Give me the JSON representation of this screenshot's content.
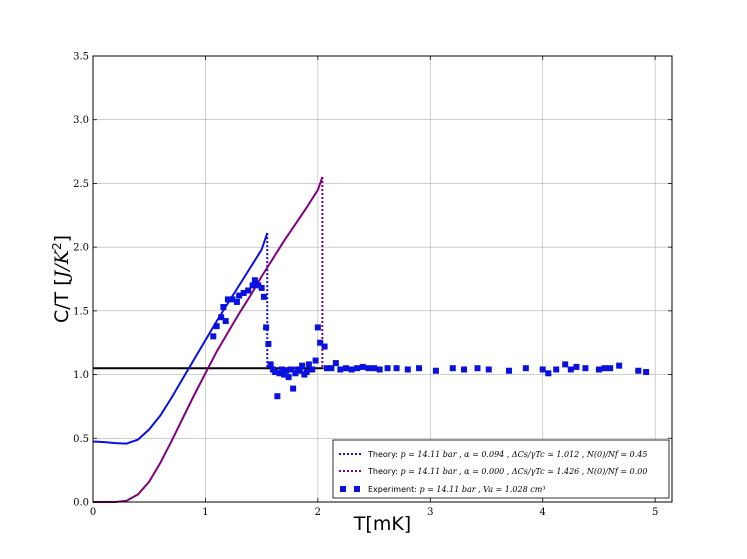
{
  "chart_data": {
    "type": "line",
    "xlabel": "T[mK]",
    "ylabel": "C/T [J/K²]",
    "ylabel_parts": {
      "main": "C/T ",
      "bracket_open": "[",
      "unit": "J/K",
      "sup": "2",
      "bracket_close": "]"
    },
    "xlim": [
      0,
      5.15
    ],
    "ylim": [
      0,
      3.5
    ],
    "xticks": [
      0,
      1,
      2,
      3,
      4,
      5
    ],
    "xtick_labels": [
      "0",
      "1",
      "2",
      "3",
      "4",
      "5"
    ],
    "yticks": [
      0.0,
      0.5,
      1.0,
      1.5,
      2.0,
      2.5,
      3.0,
      3.5
    ],
    "ytick_labels": [
      "0.0",
      "0.5",
      "1.0",
      "1.5",
      "2.0",
      "2.5",
      "3.0",
      "3.5"
    ],
    "grid": true,
    "legend_position": "bottom-right",
    "reference_line": {
      "y": 1.05,
      "x": [
        0,
        2.05
      ],
      "color": "#000000"
    },
    "series": [
      {
        "name": "Theory: p = 14.11 bar , α = 0.094 , ΔC_s/γT_c ≃ 1.012 , N(0)/N_f = 0.45",
        "style": "line",
        "color": "#0a10e0",
        "x": [
          0.0,
          0.1,
          0.2,
          0.3,
          0.4,
          0.5,
          0.6,
          0.7,
          0.8,
          0.9,
          1.0,
          1.1,
          1.2,
          1.3,
          1.4,
          1.5,
          1.55
        ],
        "y": [
          0.475,
          0.47,
          0.462,
          0.458,
          0.49,
          0.57,
          0.68,
          0.82,
          0.97,
          1.12,
          1.27,
          1.42,
          1.56,
          1.7,
          1.84,
          1.98,
          2.11
        ],
        "drop": {
          "x": 1.55,
          "from": 2.11,
          "to": 1.05
        }
      },
      {
        "name": "Theory: p = 14.11 bar , α = 0.000 , ΔC_s/γT_c ≃ 1.426 , N(0)/N_f = 0.00",
        "style": "line",
        "color": "#800080",
        "x": [
          0.0,
          0.2,
          0.3,
          0.4,
          0.5,
          0.6,
          0.7,
          0.8,
          0.9,
          1.0,
          1.1,
          1.2,
          1.3,
          1.4,
          1.5,
          1.6,
          1.7,
          1.8,
          1.9,
          2.0,
          2.04
        ],
        "y": [
          0.0,
          0.0,
          0.01,
          0.06,
          0.16,
          0.31,
          0.48,
          0.66,
          0.84,
          1.01,
          1.18,
          1.33,
          1.48,
          1.62,
          1.77,
          1.91,
          2.05,
          2.18,
          2.31,
          2.45,
          2.55
        ],
        "drop": {
          "x": 2.04,
          "from": 2.55,
          "to": 1.05
        }
      },
      {
        "name": "Experiment: p = 14.11 bar , V_a = 1.028 cm³",
        "style": "scatter",
        "color": "#0a10e0",
        "points": [
          [
            1.07,
            1.3
          ],
          [
            1.1,
            1.38
          ],
          [
            1.14,
            1.45
          ],
          [
            1.16,
            1.53
          ],
          [
            1.18,
            1.42
          ],
          [
            1.2,
            1.59
          ],
          [
            1.24,
            1.59
          ],
          [
            1.28,
            1.57
          ],
          [
            1.3,
            1.62
          ],
          [
            1.34,
            1.64
          ],
          [
            1.38,
            1.66
          ],
          [
            1.42,
            1.7
          ],
          [
            1.44,
            1.74
          ],
          [
            1.47,
            1.7
          ],
          [
            1.5,
            1.68
          ],
          [
            1.52,
            1.61
          ],
          [
            1.54,
            1.37
          ],
          [
            1.56,
            1.24
          ],
          [
            1.58,
            1.08
          ],
          [
            1.6,
            1.04
          ],
          [
            1.62,
            1.02
          ],
          [
            1.64,
            0.83
          ],
          [
            1.66,
            1.01
          ],
          [
            1.68,
            1.04
          ],
          [
            1.7,
            1.0
          ],
          [
            1.72,
            1.03
          ],
          [
            1.74,
            0.98
          ],
          [
            1.76,
            1.04
          ],
          [
            1.78,
            0.89
          ],
          [
            1.8,
            1.01
          ],
          [
            1.82,
            1.04
          ],
          [
            1.84,
            1.03
          ],
          [
            1.86,
            1.07
          ],
          [
            1.88,
            1.0
          ],
          [
            1.9,
            1.02
          ],
          [
            1.92,
            1.08
          ],
          [
            1.95,
            1.04
          ],
          [
            1.98,
            1.11
          ],
          [
            2.0,
            1.37
          ],
          [
            2.02,
            1.25
          ],
          [
            2.06,
            1.22
          ],
          [
            2.08,
            1.05
          ],
          [
            2.12,
            1.05
          ],
          [
            2.16,
            1.09
          ],
          [
            2.2,
            1.04
          ],
          [
            2.25,
            1.05
          ],
          [
            2.3,
            1.04
          ],
          [
            2.35,
            1.05
          ],
          [
            2.4,
            1.06
          ],
          [
            2.45,
            1.05
          ],
          [
            2.5,
            1.05
          ],
          [
            2.55,
            1.04
          ],
          [
            2.62,
            1.05
          ],
          [
            2.7,
            1.05
          ],
          [
            2.8,
            1.04
          ],
          [
            2.9,
            1.05
          ],
          [
            3.05,
            1.03
          ],
          [
            3.2,
            1.05
          ],
          [
            3.3,
            1.04
          ],
          [
            3.42,
            1.05
          ],
          [
            3.52,
            1.04
          ],
          [
            3.7,
            1.03
          ],
          [
            3.85,
            1.05
          ],
          [
            4.0,
            1.04
          ],
          [
            4.05,
            1.01
          ],
          [
            4.12,
            1.04
          ],
          [
            4.2,
            1.08
          ],
          [
            4.25,
            1.04
          ],
          [
            4.3,
            1.06
          ],
          [
            4.38,
            1.05
          ],
          [
            4.5,
            1.04
          ],
          [
            4.55,
            1.05
          ],
          [
            4.6,
            1.05
          ],
          [
            4.68,
            1.07
          ],
          [
            4.85,
            1.03
          ],
          [
            4.92,
            1.02
          ]
        ]
      }
    ],
    "legend": {
      "entries": [
        {
          "label_prefix": "Theory: ",
          "label_math": "p = 14.11 bar , α = 0.094 , ΔCs/γTc ≃ 1.012 , N(0)/Nf = 0.45",
          "color": "#0a10e0",
          "marker": "dotted-line"
        },
        {
          "label_prefix": "Theory: ",
          "label_math": "p = 14.11 bar , α = 0.000 , ΔCs/γTc ≃ 1.426 , N(0)/Nf = 0.00",
          "color": "#800080",
          "marker": "dotted-line"
        },
        {
          "label_prefix": "Experiment: ",
          "label_math": "p = 14.11 bar , Va = 1.028 cm³",
          "color": "#0a10e0",
          "marker": "square"
        }
      ]
    }
  }
}
